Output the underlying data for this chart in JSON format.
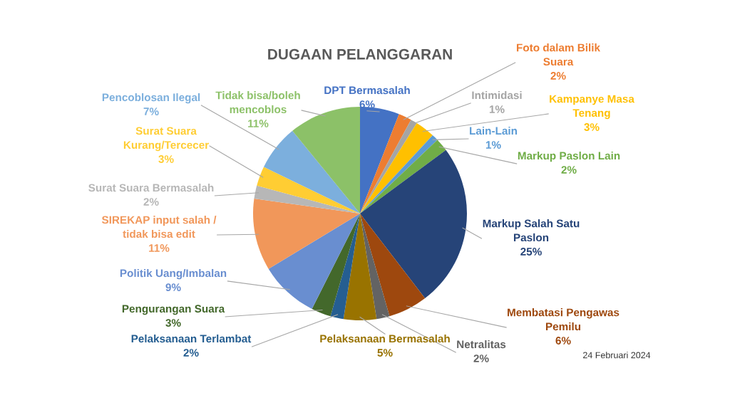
{
  "chart_data": {
    "type": "pie",
    "title": "DUGAAN PELANGGARAN",
    "categories": [
      "DPT Bermasalah",
      "Foto dalam Bilik Suara",
      "Intimidasi",
      "Kampanye Masa Tenang",
      "Lain-Lain",
      "Markup Paslon Lain",
      "Markup Salah Satu Paslon",
      "Membatasi Pengawas Pemilu",
      "Netralitas",
      "Pelaksanaan Bermasalah",
      "Pelaksanaan Terlambat",
      "Pengurangan Suara",
      "Politik Uang/Imbalan",
      "SIREKAP input salah / tidak bisa edit",
      "Surat Suara Bermasalah",
      "Surat Suara Kurang/Tercecer",
      "Pencoblosan Ilegal",
      "Tidak bisa/boleh mencoblos"
    ],
    "values": [
      6,
      2,
      1,
      3,
      1,
      2,
      25,
      6,
      2,
      5,
      2,
      3,
      9,
      11,
      2,
      3,
      7,
      11
    ],
    "value_labels": [
      "6%",
      "2%",
      "1%",
      "3%",
      "1%",
      "2%",
      "25%",
      "6%",
      "2%",
      "5%",
      "2%",
      "3%",
      "9%",
      "11%",
      "2%",
      "3%",
      "7%",
      "11%"
    ],
    "colors": [
      "#4472c4",
      "#ed7d31",
      "#a5a5a5",
      "#ffc000",
      "#5b9bd5",
      "#70ad47",
      "#264478",
      "#9e480e",
      "#636363",
      "#997300",
      "#255e91",
      "#43682b",
      "#698ed0",
      "#f1975a",
      "#b7b7b7",
      "#ffcd33",
      "#7cafdd",
      "#8cc168"
    ],
    "legend": false,
    "annotations": [
      "24 Februari 2024"
    ]
  }
}
